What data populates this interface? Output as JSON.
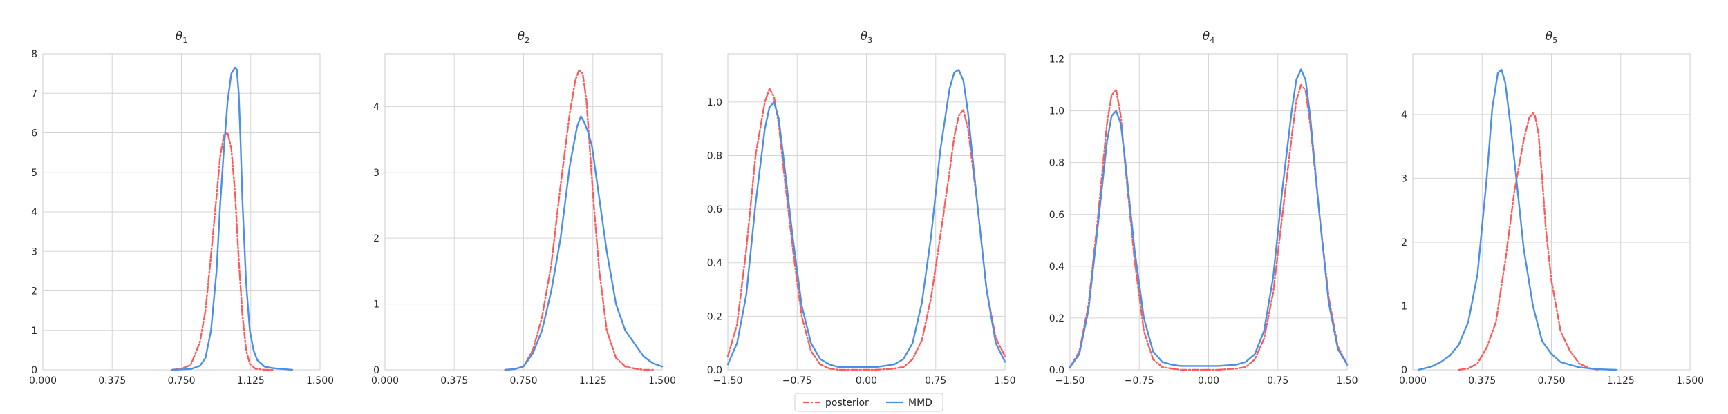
{
  "chart_data": [
    {
      "type": "line",
      "title_symbol": "θ",
      "title_sub": "1",
      "xlim": [
        0,
        1.5
      ],
      "xticks": [
        "0.000",
        "0.375",
        "0.750",
        "1.125",
        "1.500"
      ],
      "ylim": [
        0,
        8
      ],
      "yticks": [
        "0",
        "1",
        "2",
        "3",
        "4",
        "5",
        "6",
        "7",
        "8"
      ],
      "grid": true,
      "series": [
        {
          "name": "posterior",
          "x": [
            0.7,
            0.75,
            0.8,
            0.85,
            0.88,
            0.91,
            0.94,
            0.96,
            0.98,
            1.0,
            1.02,
            1.04,
            1.06,
            1.08,
            1.1,
            1.12,
            1.15,
            1.2,
            1.25
          ],
          "y": [
            0.0,
            0.03,
            0.12,
            0.7,
            1.5,
            2.9,
            4.4,
            5.4,
            5.95,
            6.0,
            5.6,
            4.5,
            2.8,
            1.4,
            0.5,
            0.15,
            0.03,
            0.0,
            0.0
          ]
        },
        {
          "name": "MMD",
          "x": [
            0.7,
            0.8,
            0.85,
            0.88,
            0.91,
            0.94,
            0.96,
            0.98,
            1.0,
            1.02,
            1.04,
            1.05,
            1.06,
            1.07,
            1.08,
            1.1,
            1.12,
            1.14,
            1.16,
            1.2,
            1.25,
            1.3,
            1.35
          ],
          "y": [
            0.0,
            0.02,
            0.1,
            0.3,
            1.0,
            2.5,
            4.2,
            5.6,
            6.8,
            7.5,
            7.65,
            7.6,
            7.0,
            5.8,
            4.3,
            2.2,
            1.0,
            0.5,
            0.25,
            0.08,
            0.04,
            0.02,
            0.0
          ]
        }
      ]
    },
    {
      "type": "line",
      "title_symbol": "θ",
      "title_sub": "2",
      "xlim": [
        0,
        1.5
      ],
      "xticks": [
        "0.000",
        "0.375",
        "0.750",
        "1.125",
        "1.500"
      ],
      "ylim": [
        0,
        4.8
      ],
      "yticks": [
        "0",
        "1",
        "2",
        "3",
        "4"
      ],
      "grid": true,
      "series": [
        {
          "name": "posterior",
          "x": [
            0.65,
            0.7,
            0.75,
            0.8,
            0.85,
            0.9,
            0.95,
            1.0,
            1.03,
            1.05,
            1.07,
            1.09,
            1.11,
            1.13,
            1.16,
            1.2,
            1.25,
            1.3,
            1.35,
            1.4,
            1.45
          ],
          "y": [
            0.0,
            0.01,
            0.05,
            0.3,
            0.8,
            1.6,
            2.8,
            3.9,
            4.4,
            4.55,
            4.5,
            4.1,
            3.3,
            2.5,
            1.5,
            0.6,
            0.18,
            0.05,
            0.02,
            0.0,
            0.0
          ]
        },
        {
          "name": "MMD",
          "x": [
            0.65,
            0.7,
            0.75,
            0.8,
            0.85,
            0.9,
            0.95,
            1.0,
            1.04,
            1.06,
            1.08,
            1.1,
            1.12,
            1.15,
            1.2,
            1.25,
            1.3,
            1.35,
            1.4,
            1.45,
            1.5
          ],
          "y": [
            0.0,
            0.01,
            0.05,
            0.25,
            0.6,
            1.2,
            2.0,
            3.1,
            3.7,
            3.85,
            3.75,
            3.6,
            3.4,
            2.8,
            1.8,
            1.0,
            0.6,
            0.4,
            0.2,
            0.1,
            0.05
          ]
        }
      ]
    },
    {
      "type": "line",
      "title_symbol": "θ",
      "title_sub": "3",
      "xlim": [
        -1.5,
        1.5
      ],
      "xticks": [
        "−1.50",
        "−0.75",
        "0.00",
        "0.75",
        "1.50"
      ],
      "ylim": [
        0,
        1.18
      ],
      "yticks": [
        "0.0",
        "0.2",
        "0.4",
        "0.6",
        "0.8",
        "1.0"
      ],
      "grid": true,
      "series": [
        {
          "name": "posterior",
          "x": [
            -1.5,
            -1.4,
            -1.3,
            -1.2,
            -1.1,
            -1.05,
            -1.0,
            -0.95,
            -0.9,
            -0.8,
            -0.7,
            -0.6,
            -0.5,
            -0.4,
            -0.3,
            -0.1,
            0.1,
            0.3,
            0.4,
            0.5,
            0.6,
            0.7,
            0.8,
            0.9,
            0.95,
            1.0,
            1.05,
            1.1,
            1.2,
            1.3,
            1.4,
            1.5
          ],
          "y": [
            0.05,
            0.17,
            0.45,
            0.8,
            1.0,
            1.05,
            1.02,
            0.92,
            0.76,
            0.46,
            0.2,
            0.07,
            0.02,
            0.005,
            0.0,
            0.0,
            0.0,
            0.005,
            0.01,
            0.04,
            0.11,
            0.27,
            0.5,
            0.74,
            0.87,
            0.95,
            0.97,
            0.9,
            0.62,
            0.3,
            0.12,
            0.05
          ]
        },
        {
          "name": "MMD",
          "x": [
            -1.5,
            -1.4,
            -1.3,
            -1.2,
            -1.1,
            -1.05,
            -1.0,
            -0.95,
            -0.9,
            -0.8,
            -0.7,
            -0.6,
            -0.5,
            -0.4,
            -0.3,
            -0.1,
            0.1,
            0.3,
            0.4,
            0.5,
            0.6,
            0.7,
            0.8,
            0.9,
            0.95,
            1.0,
            1.05,
            1.1,
            1.2,
            1.3,
            1.4,
            1.5
          ],
          "y": [
            0.02,
            0.1,
            0.28,
            0.62,
            0.9,
            0.98,
            1.0,
            0.94,
            0.8,
            0.5,
            0.24,
            0.1,
            0.04,
            0.02,
            0.01,
            0.01,
            0.01,
            0.02,
            0.04,
            0.1,
            0.25,
            0.5,
            0.82,
            1.05,
            1.11,
            1.12,
            1.08,
            0.96,
            0.62,
            0.3,
            0.1,
            0.03
          ]
        }
      ]
    },
    {
      "type": "line",
      "title_symbol": "θ",
      "title_sub": "4",
      "xlim": [
        -1.5,
        1.5
      ],
      "xticks": [
        "−1.50",
        "−0.75",
        "0.00",
        "0.75",
        "1.50"
      ],
      "ylim": [
        0,
        1.22
      ],
      "yticks": [
        "0.0",
        "0.2",
        "0.4",
        "0.6",
        "0.8",
        "1.0",
        "1.2"
      ],
      "grid": true,
      "series": [
        {
          "name": "posterior",
          "x": [
            -1.5,
            -1.4,
            -1.3,
            -1.2,
            -1.1,
            -1.05,
            -1.0,
            -0.95,
            -0.9,
            -0.8,
            -0.7,
            -0.6,
            -0.5,
            -0.4,
            -0.3,
            -0.1,
            0.1,
            0.3,
            0.4,
            0.5,
            0.6,
            0.7,
            0.8,
            0.9,
            0.95,
            1.0,
            1.05,
            1.1,
            1.2,
            1.3,
            1.4,
            1.5
          ],
          "y": [
            0.01,
            0.07,
            0.25,
            0.58,
            0.95,
            1.06,
            1.08,
            0.98,
            0.78,
            0.42,
            0.15,
            0.04,
            0.01,
            0.005,
            0.0,
            0.0,
            0.0,
            0.005,
            0.01,
            0.04,
            0.12,
            0.3,
            0.6,
            0.9,
            1.04,
            1.1,
            1.08,
            0.95,
            0.6,
            0.28,
            0.09,
            0.02
          ]
        },
        {
          "name": "MMD",
          "x": [
            -1.5,
            -1.4,
            -1.3,
            -1.2,
            -1.1,
            -1.05,
            -1.0,
            -0.95,
            -0.9,
            -0.8,
            -0.7,
            -0.6,
            -0.5,
            -0.4,
            -0.3,
            -0.1,
            0.1,
            0.3,
            0.4,
            0.5,
            0.6,
            0.7,
            0.8,
            0.9,
            0.95,
            1.0,
            1.05,
            1.1,
            1.2,
            1.3,
            1.4,
            1.5
          ],
          "y": [
            0.01,
            0.06,
            0.23,
            0.55,
            0.88,
            0.98,
            1.0,
            0.95,
            0.8,
            0.46,
            0.2,
            0.07,
            0.03,
            0.02,
            0.015,
            0.015,
            0.015,
            0.02,
            0.03,
            0.06,
            0.15,
            0.36,
            0.7,
            1.0,
            1.12,
            1.16,
            1.12,
            0.98,
            0.6,
            0.26,
            0.08,
            0.02
          ]
        }
      ]
    },
    {
      "type": "line",
      "title_symbol": "θ",
      "title_sub": "5",
      "xlim": [
        0,
        1.5
      ],
      "xticks": [
        "0.000",
        "0.375",
        "0.750",
        "1.125",
        "1.500"
      ],
      "ylim": [
        0,
        4.95
      ],
      "yticks": [
        "0",
        "1",
        "2",
        "3",
        "4"
      ],
      "grid": true,
      "series": [
        {
          "name": "posterior",
          "x": [
            0.25,
            0.3,
            0.35,
            0.4,
            0.45,
            0.5,
            0.55,
            0.6,
            0.63,
            0.65,
            0.66,
            0.68,
            0.7,
            0.72,
            0.75,
            0.8,
            0.85,
            0.9,
            0.95,
            1.0
          ],
          "y": [
            0.0,
            0.02,
            0.1,
            0.35,
            0.75,
            1.7,
            2.8,
            3.6,
            3.95,
            4.02,
            4.0,
            3.7,
            3.0,
            2.2,
            1.4,
            0.6,
            0.3,
            0.1,
            0.03,
            0.0
          ]
        },
        {
          "name": "MMD",
          "x": [
            0.03,
            0.1,
            0.15,
            0.2,
            0.25,
            0.3,
            0.35,
            0.4,
            0.43,
            0.46,
            0.48,
            0.5,
            0.53,
            0.56,
            0.6,
            0.65,
            0.7,
            0.75,
            0.8,
            0.9,
            1.0,
            1.1
          ],
          "y": [
            0.0,
            0.05,
            0.12,
            0.22,
            0.4,
            0.75,
            1.5,
            3.0,
            4.1,
            4.65,
            4.7,
            4.5,
            3.8,
            3.0,
            1.9,
            1.0,
            0.45,
            0.25,
            0.12,
            0.04,
            0.01,
            0.0
          ]
        }
      ]
    }
  ],
  "legend": {
    "placement": "bottom-center",
    "items": [
      {
        "label": "posterior",
        "color": "#ff5a5a",
        "style": "dash-dot"
      },
      {
        "label": "MMD",
        "color": "#4a8fe8",
        "style": "solid"
      }
    ]
  },
  "colors": {
    "posterior": "#ff5a5a",
    "MMD": "#4a8fe8",
    "grid": "#d5d5d5",
    "spine": "#cccccc"
  }
}
